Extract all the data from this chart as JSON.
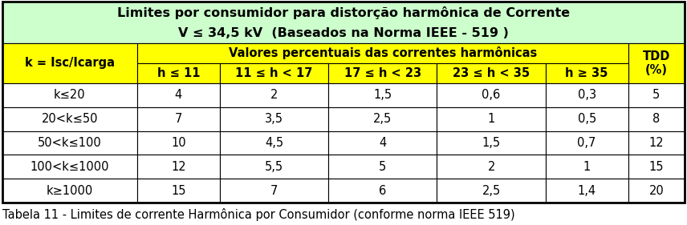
{
  "title_line1": "Limites por consumidor para distorção harmônica de Corrente",
  "title_line2": "V ≤ 34,5 kV  (Baseados na Norma IEEE - 519 )",
  "title_bg": "#ccffcc",
  "header_bg": "#ffff00",
  "data_bg": "#ffffff",
  "col0_header": "k = Isc/Icarga",
  "sub_header_span": "Valores percentuais das correntes harmônicas",
  "tdd_header": "TDD\n(%)",
  "col_headers": [
    "h ≤ 11",
    "11 ≤ h < 17",
    "17 ≤ h < 23",
    "23 ≤ h < 35",
    "h ≥ 35"
  ],
  "row_labels": [
    "k≤20",
    "20<k≤50",
    "50<k≤100",
    "100<k≤1000",
    "k≥1000"
  ],
  "table_data": [
    [
      "4",
      "2",
      "1,5",
      "0,6",
      "0,3",
      "5"
    ],
    [
      "7",
      "3,5",
      "2,5",
      "1",
      "0,5",
      "8"
    ],
    [
      "10",
      "4,5",
      "4",
      "1,5",
      "0,7",
      "12"
    ],
    [
      "12",
      "5,5",
      "5",
      "2",
      "1",
      "15"
    ],
    [
      "15",
      "7",
      "6",
      "2,5",
      "1,4",
      "20"
    ]
  ],
  "caption": "Tabela 11 - Limites de corrente Harmônica por Consumidor (conforme norma IEEE 519)",
  "col_widths_rel": [
    1.55,
    0.95,
    1.25,
    1.25,
    1.25,
    0.95,
    0.65
  ],
  "title_fontsize": 11.5,
  "header_fontsize": 10.5,
  "data_fontsize": 10.5,
  "caption_fontsize": 10.5
}
